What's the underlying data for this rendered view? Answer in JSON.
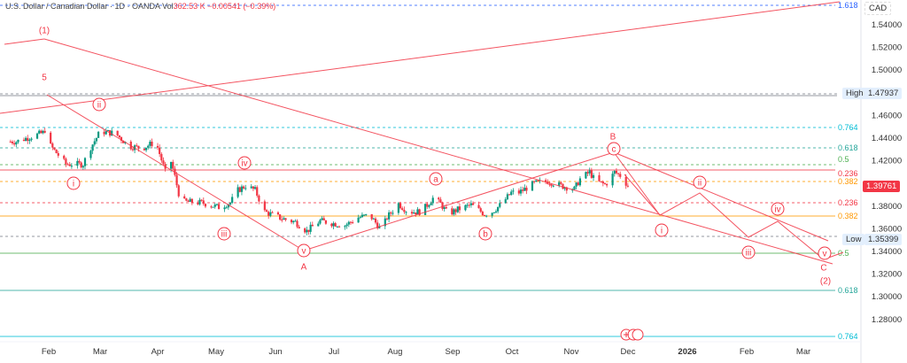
{
  "header": {
    "symbol": "U.S. Dollar / Canadian Dollar · 1D · OANDA",
    "volume_label": "Vol",
    "volume": "362.53 K",
    "change": "−0.00541 (−0.39%)"
  },
  "price_axis": {
    "currency": "CAD",
    "high_label": "High",
    "high_value": "1.47937",
    "low_label": "Low",
    "low_value": "1.35399",
    "last_value": "1.39761",
    "last_color": "#f23645"
  },
  "chart_data": {
    "type": "candlestick",
    "title": "",
    "xlabel": "",
    "ylabel": "",
    "ylim": [
      1.27,
      1.56
    ],
    "y_ticks": [
      "1.54000",
      "1.52000",
      "1.50000",
      "1.46000",
      "1.44000",
      "1.42000",
      "1.38000",
      "1.36000",
      "1.34000",
      "1.32000",
      "1.30000",
      "1.28000"
    ],
    "x_ticks": [
      "Feb",
      "Mar",
      "Apr",
      "May",
      "Jun",
      "Jul",
      "Aug",
      "Sep",
      "Oct",
      "Nov",
      "Dec",
      "2026",
      "Feb",
      "Mar"
    ],
    "colors": {
      "up": "#089981",
      "down": "#f23645"
    },
    "approx_closes": [
      [
        "2025-01-10",
        1.4369
      ],
      [
        "2025-01-15",
        1.437
      ],
      [
        "2025-01-29",
        1.4447
      ],
      [
        "2025-01-31",
        1.45
      ],
      [
        "2025-02-02",
        1.433
      ],
      [
        "2025-02-10",
        1.417
      ],
      [
        "2025-02-19",
        1.417
      ],
      [
        "2025-02-22",
        1.429
      ],
      [
        "2025-02-28",
        1.446
      ],
      [
        "2025-03-08",
        1.444
      ],
      [
        "2025-03-15",
        1.433
      ],
      [
        "2025-03-22",
        1.431
      ],
      [
        "2025-03-29",
        1.437
      ],
      [
        "2025-04-03",
        1.41
      ],
      [
        "2025-04-05",
        1.426
      ],
      [
        "2025-04-08",
        1.406
      ],
      [
        "2025-04-11",
        1.384
      ],
      [
        "2025-04-22",
        1.383
      ],
      [
        "2025-05-01",
        1.379
      ],
      [
        "2025-05-07",
        1.383
      ],
      [
        "2025-05-11",
        1.394
      ],
      [
        "2025-05-15",
        1.398
      ],
      [
        "2025-05-20",
        1.394
      ],
      [
        "2025-05-25",
        1.375
      ],
      [
        "2025-06-03",
        1.369
      ],
      [
        "2025-06-10",
        1.366
      ],
      [
        "2025-06-16",
        1.358
      ],
      [
        "2025-06-23",
        1.367
      ],
      [
        "2025-06-29",
        1.365
      ],
      [
        "2025-07-06",
        1.363
      ],
      [
        "2025-07-13",
        1.37
      ],
      [
        "2025-07-19",
        1.372
      ],
      [
        "2025-07-25",
        1.359
      ],
      [
        "2025-07-28",
        1.37
      ],
      [
        "2025-08-03",
        1.382
      ],
      [
        "2025-08-08",
        1.375
      ],
      [
        "2025-08-15",
        1.375
      ],
      [
        "2025-08-21",
        1.387
      ],
      [
        "2025-08-25",
        1.382
      ],
      [
        "2025-08-29",
        1.373
      ],
      [
        "2025-09-03",
        1.377
      ],
      [
        "2025-09-10",
        1.381
      ],
      [
        "2025-09-17",
        1.373
      ],
      [
        "2025-09-21",
        1.375
      ],
      [
        "2025-09-26",
        1.382
      ],
      [
        "2025-10-01",
        1.392
      ],
      [
        "2025-10-05",
        1.392
      ],
      [
        "2025-10-13",
        1.4
      ],
      [
        "2025-10-20",
        1.402
      ],
      [
        "2025-10-27",
        1.398
      ],
      [
        "2025-11-03",
        1.395
      ],
      [
        "2025-11-06",
        1.404
      ],
      [
        "2025-11-11",
        1.41
      ],
      [
        "2025-11-14",
        1.402
      ],
      [
        "2025-11-19",
        1.399
      ],
      [
        "2025-11-21",
        1.402
      ],
      [
        "2025-11-24",
        1.41
      ],
      [
        "2025-11-28",
        1.406
      ],
      [
        "2025-12-01",
        1.3976
      ]
    ],
    "period_high": 1.47937,
    "period_low": 1.35399,
    "fib_levels": [
      {
        "label": "1.618",
        "color": "#2962ff",
        "style": "dashed"
      },
      {
        "label": "0.764",
        "color": "#00bcd4",
        "style": "dashed"
      },
      {
        "label": "0.618",
        "color": "#26a69a",
        "style": "dashed"
      },
      {
        "label": "0.5",
        "color": "#4caf50",
        "style": "dashed"
      },
      {
        "label": "0.236",
        "color": "#f23645",
        "style": "solid"
      },
      {
        "label": "0.382",
        "color": "#ff9800",
        "style": "dashed"
      },
      {
        "label": "0.236",
        "color": "#f23645",
        "style": "dashed"
      },
      {
        "label": "0.382",
        "color": "#ff9800",
        "style": "solid"
      },
      {
        "label": "0.5",
        "color": "#4caf50",
        "style": "solid"
      },
      {
        "label": "0.618",
        "color": "#26a69a",
        "style": "solid"
      },
      {
        "label": "0.764",
        "color": "#00bcd4",
        "style": "solid"
      }
    ],
    "wave_labels": {
      "w1": "(1)",
      "w5": "5",
      "ii": "ii",
      "i": "i",
      "iv": "iv",
      "iii": "iii",
      "v": "v",
      "A": "A",
      "a": "a",
      "b": "b",
      "B": "B",
      "c": "c",
      "pii": "ii",
      "pi": "i",
      "piv": "iv",
      "piii": "iii",
      "pv": "v",
      "C": "C",
      "w2": "(2)"
    }
  }
}
